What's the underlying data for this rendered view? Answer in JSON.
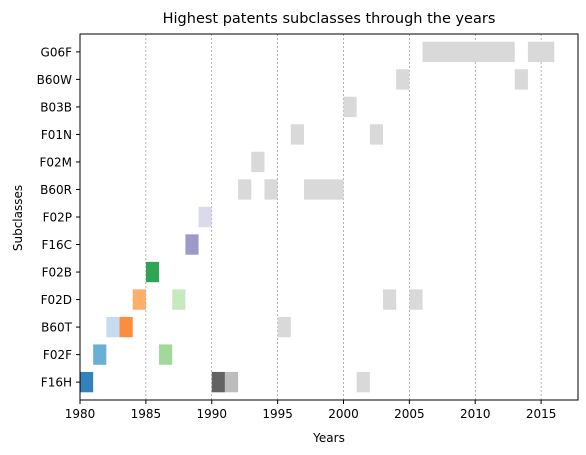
{
  "chart_data": {
    "type": "broken_barh",
    "title": "Highest patents subclasses through the years",
    "xlabel": "Years",
    "ylabel": "Subclasses",
    "xlim": [
      1980,
      2017.8
    ],
    "xticks": [
      1980,
      1985,
      1990,
      1995,
      2000,
      2005,
      2010,
      2015
    ],
    "grid": "vertical-dashed",
    "categories": [
      "F16H",
      "F02F",
      "B60T",
      "F02D",
      "F02B",
      "F16C",
      "F02P",
      "B60R",
      "F02M",
      "F01N",
      "B03B",
      "B60W",
      "G06F"
    ],
    "bars": [
      {
        "category": "F16H",
        "start": 1980,
        "end": 1981,
        "color": "#3182bd"
      },
      {
        "category": "F16H",
        "start": 1990,
        "end": 1991,
        "color": "#636363"
      },
      {
        "category": "F16H",
        "start": 1991,
        "end": 1992,
        "color": "#bdbdbd"
      },
      {
        "category": "F16H",
        "start": 2001,
        "end": 2002,
        "color": "#d9d9d9"
      },
      {
        "category": "F02F",
        "start": 1981,
        "end": 1982,
        "color": "#6baed6"
      },
      {
        "category": "F02F",
        "start": 1986,
        "end": 1987,
        "color": "#a1d99b"
      },
      {
        "category": "B60T",
        "start": 1982,
        "end": 1983,
        "color": "#c6dbef"
      },
      {
        "category": "B60T",
        "start": 1983,
        "end": 1984,
        "color": "#fd8d3c"
      },
      {
        "category": "B60T",
        "start": 1995,
        "end": 1996,
        "color": "#d9d9d9"
      },
      {
        "category": "F02D",
        "start": 1984,
        "end": 1985,
        "color": "#fdae6b"
      },
      {
        "category": "F02D",
        "start": 1987,
        "end": 1988,
        "color": "#c7e9c0"
      },
      {
        "category": "F02D",
        "start": 2003,
        "end": 2004,
        "color": "#d9d9d9"
      },
      {
        "category": "F02D",
        "start": 2005,
        "end": 2006,
        "color": "#d9d9d9"
      },
      {
        "category": "F02B",
        "start": 1985,
        "end": 1986,
        "color": "#31a354"
      },
      {
        "category": "F16C",
        "start": 1988,
        "end": 1989,
        "color": "#9e9ac8"
      },
      {
        "category": "F02P",
        "start": 1989,
        "end": 1990,
        "color": "#dadaeb"
      },
      {
        "category": "B60R",
        "start": 1992,
        "end": 1993,
        "color": "#d9d9d9"
      },
      {
        "category": "B60R",
        "start": 1994,
        "end": 1995,
        "color": "#d9d9d9"
      },
      {
        "category": "B60R",
        "start": 1997,
        "end": 2000,
        "color": "#d9d9d9"
      },
      {
        "category": "F02M",
        "start": 1993,
        "end": 1994,
        "color": "#d9d9d9"
      },
      {
        "category": "F01N",
        "start": 1996,
        "end": 1997,
        "color": "#d9d9d9"
      },
      {
        "category": "F01N",
        "start": 2002,
        "end": 2003,
        "color": "#d9d9d9"
      },
      {
        "category": "B03B",
        "start": 2000,
        "end": 2001,
        "color": "#d9d9d9"
      },
      {
        "category": "B60W",
        "start": 2004,
        "end": 2005,
        "color": "#d9d9d9"
      },
      {
        "category": "B60W",
        "start": 2013,
        "end": 2014,
        "color": "#d9d9d9"
      },
      {
        "category": "G06F",
        "start": 2006,
        "end": 2013,
        "color": "#d9d9d9"
      },
      {
        "category": "G06F",
        "start": 2014,
        "end": 2016,
        "color": "#d9d9d9"
      }
    ]
  }
}
